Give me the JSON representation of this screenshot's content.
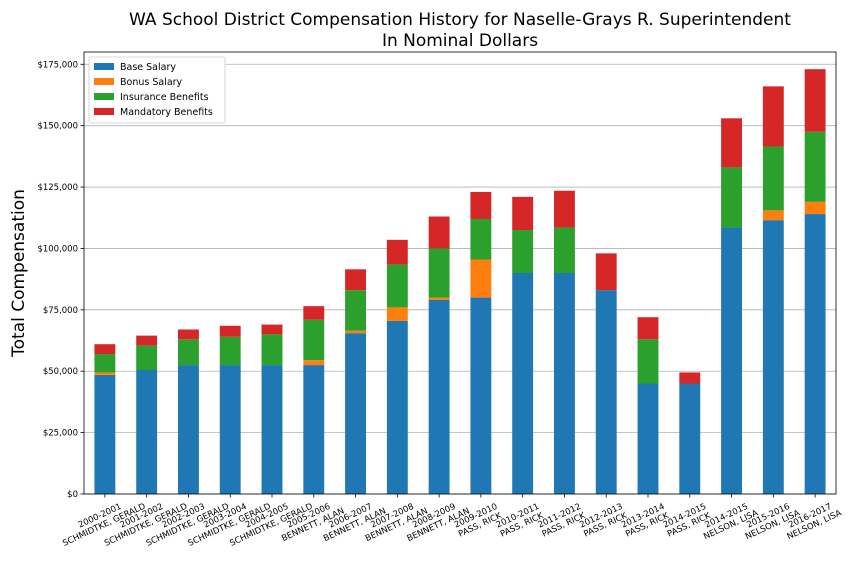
{
  "chart_data": {
    "type": "bar",
    "stacked": true,
    "title": "WA School District Compensation History for Naselle-Grays R. Superintendent",
    "subtitle": "In Nominal Dollars",
    "xlabel": "",
    "ylabel": "Total Compensation",
    "ylim": [
      0,
      180000
    ],
    "yticks": [
      0,
      25000,
      50000,
      75000,
      100000,
      125000,
      150000,
      175000
    ],
    "ytick_labels": [
      "$0",
      "$25,000",
      "$50,000",
      "$75,000",
      "$100,000",
      "$125,000",
      "$150,000",
      "$175,000"
    ],
    "grid": "horizontal",
    "legend_position": "top-left",
    "categories": [
      "2000-2001\nSCHMIDTKE, GERALD",
      "2001-2002\nSCHMIDTKE, GERALD",
      "2002-2003\nSCHMIDTKE, GERALD",
      "2003-2004\nSCHMIDTKE, GERALD",
      "2004-2005\nSCHMIDTKE, GERALD",
      "2005-2006\nBENNETT, ALAN",
      "2006-2007\nBENNETT, ALAN",
      "2007-2008\nBENNETT, ALAN",
      "2008-2009\nBENNETT, ALAN",
      "2009-2010\nPASS, RICK",
      "2010-2011\nPASS, RICK",
      "2011-2012\nPASS, RICK",
      "2012-2013\nPASS, RICK",
      "2013-2014\nPASS, RICK",
      "2014-2015\nPASS, RICK",
      "2014-2015\nNELSON, LISA",
      "2015-2016\nNELSON, LISA",
      "2016-2017\nNELSON, LISA"
    ],
    "series": [
      {
        "name": "Base Salary",
        "color": "#1f77b4",
        "values": [
          48500,
          50500,
          52500,
          52500,
          52500,
          52500,
          65500,
          70500,
          79000,
          80000,
          90000,
          90000,
          83000,
          45000,
          45000,
          108500,
          111500,
          114000
        ]
      },
      {
        "name": "Bonus Salary",
        "color": "#ff7f0e",
        "values": [
          1000,
          0,
          0,
          0,
          0,
          2000,
          1000,
          5500,
          1000,
          15500,
          0,
          0,
          0,
          0,
          0,
          0,
          4000,
          5000
        ]
      },
      {
        "name": "Insurance Benefits",
        "color": "#2ca02c",
        "values": [
          7500,
          10000,
          10500,
          11500,
          12500,
          16500,
          16500,
          17500,
          20000,
          16500,
          17500,
          18500,
          0,
          18000,
          0,
          24500,
          26000,
          28500
        ]
      },
      {
        "name": "Mandatory Benefits",
        "color": "#d62728",
        "values": [
          4000,
          4000,
          4000,
          4500,
          4000,
          5500,
          8500,
          10000,
          13000,
          11000,
          13500,
          15000,
          15000,
          9000,
          4500,
          20000,
          24500,
          25500
        ]
      }
    ]
  }
}
